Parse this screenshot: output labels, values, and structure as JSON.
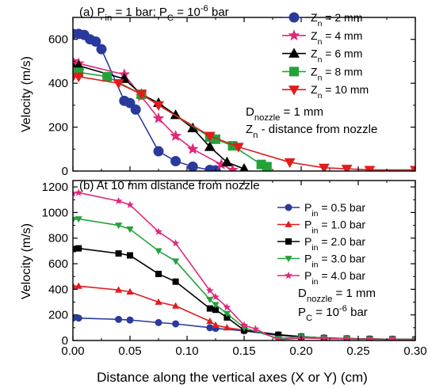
{
  "chart_data": [
    {
      "type": "line",
      "panel": "a",
      "title_parts": [
        "(a) P",
        "in",
        " = 1 bar; P",
        "C",
        " = 10",
        "-6",
        " bar"
      ],
      "xlabel": "Distance along the vertical axes (X or Y) (cm)",
      "ylabel": "Velocity (m/s)",
      "xlim": [
        0,
        0.3
      ],
      "ylim": [
        0,
        700
      ],
      "xticks": [
        0.0,
        0.05,
        0.1,
        0.15,
        0.2,
        0.25,
        0.3
      ],
      "yticks": [
        0,
        200,
        400,
        600
      ],
      "legend_position": "top-right",
      "annotation_lines": [
        [
          "D",
          "nozzle",
          " = 1 mm"
        ],
        [
          "Z",
          "n",
          " - distance from nozzle"
        ]
      ],
      "series": [
        {
          "name_parts": [
            "Z",
            "n",
            " = 2 mm"
          ],
          "color": "#2a3a9c",
          "marker": "circle",
          "x": [
            0,
            0.005,
            0.01,
            0.015,
            0.02,
            0.025,
            0.045,
            0.05,
            0.055,
            0.075,
            0.09,
            0.105,
            0.12,
            0.125
          ],
          "y": [
            625,
            625,
            620,
            600,
            590,
            555,
            320,
            310,
            280,
            90,
            45,
            20,
            5,
            3
          ]
        },
        {
          "name_parts": [
            "Z",
            "n",
            " = 4 mm"
          ],
          "color": "#e0287a",
          "marker": "star",
          "x": [
            0,
            0.005,
            0.045,
            0.06,
            0.075,
            0.09,
            0.105,
            0.13,
            0.14
          ],
          "y": [
            500,
            490,
            440,
            340,
            240,
            160,
            100,
            30,
            5
          ]
        },
        {
          "name_parts": [
            "Z",
            "n",
            " = 6 mm"
          ],
          "color": "#000000",
          "marker": "triangle-up",
          "x": [
            0,
            0.005,
            0.045,
            0.06,
            0.075,
            0.09,
            0.105,
            0.12,
            0.135,
            0.15
          ],
          "y": [
            475,
            480,
            420,
            350,
            310,
            255,
            195,
            110,
            40,
            10
          ]
        },
        {
          "name_parts": [
            "Z",
            "n",
            " = 8 mm"
          ],
          "color": "#22a33a",
          "marker": "square",
          "x": [
            0,
            0.005,
            0.03,
            0.06,
            0.12,
            0.125,
            0.14,
            0.165,
            0.17
          ],
          "y": [
            450,
            450,
            430,
            350,
            155,
            145,
            115,
            30,
            20
          ]
        },
        {
          "name_parts": [
            "Z",
            "n",
            " = 10 mm"
          ],
          "color": "#e01c1c",
          "marker": "triangle-down",
          "x": [
            0,
            0.005,
            0.04,
            0.06,
            0.075,
            0.12,
            0.145,
            0.19,
            0.22,
            0.24,
            0.26,
            0.3
          ],
          "y": [
            430,
            430,
            400,
            350,
            300,
            160,
            110,
            40,
            15,
            10,
            5,
            5
          ]
        }
      ]
    },
    {
      "type": "line",
      "panel": "b",
      "title": "(b) At 10 mm distance from nozzle",
      "xlabel": "Distance along the vertical axes (X or Y) (cm)",
      "ylabel": "Velocity (m/s)",
      "xlim": [
        0,
        0.3
      ],
      "ylim": [
        0,
        1250
      ],
      "xticks": [
        0.0,
        0.05,
        0.1,
        0.15,
        0.2,
        0.25,
        0.3
      ],
      "xtick_labels": [
        "0.00",
        "0.05",
        "0.10",
        "0.15",
        "0.20",
        "0.25",
        "0.30"
      ],
      "yticks": [
        0,
        200,
        400,
        600,
        800,
        1000,
        1200
      ],
      "legend_position": "top-right",
      "annotation_lines": [
        [
          "D",
          "nozzle",
          " = 1 mm"
        ],
        [
          "P",
          "C",
          " = 10",
          "-6",
          " bar"
        ]
      ],
      "series": [
        {
          "name_parts": [
            "P",
            "in",
            " = 0.5 bar"
          ],
          "color": "#2a3a9c",
          "marker": "circle",
          "x": [
            0,
            0.005,
            0.04,
            0.05,
            0.075,
            0.09,
            0.12,
            0.125,
            0.15,
            0.18,
            0.2,
            0.22,
            0.24,
            0.26,
            0.28,
            0.3
          ],
          "y": [
            175,
            175,
            165,
            160,
            140,
            130,
            100,
            95,
            75,
            40,
            30,
            20,
            15,
            12,
            10,
            8
          ]
        },
        {
          "name_parts": [
            "P",
            "in",
            " = 1.0 bar"
          ],
          "color": "#e01c1c",
          "marker": "triangle-up",
          "x": [
            0,
            0.005,
            0.04,
            0.05,
            0.075,
            0.09,
            0.12,
            0.125,
            0.135,
            0.15,
            0.18,
            0.2,
            0.22,
            0.24,
            0.26,
            0.28,
            0.3
          ],
          "y": [
            425,
            425,
            395,
            380,
            300,
            270,
            150,
            120,
            100,
            80,
            45,
            30,
            20,
            15,
            12,
            10,
            8
          ]
        },
        {
          "name_parts": [
            "P",
            "in",
            " = 2.0 bar"
          ],
          "color": "#000000",
          "marker": "square",
          "x": [
            0,
            0.005,
            0.04,
            0.05,
            0.075,
            0.09,
            0.12,
            0.125,
            0.135,
            0.15,
            0.18,
            0.2,
            0.22,
            0.24,
            0.26,
            0.28,
            0.3
          ],
          "y": [
            715,
            720,
            680,
            665,
            520,
            460,
            250,
            240,
            180,
            80,
            45,
            30,
            20,
            15,
            12,
            10,
            8
          ]
        },
        {
          "name_parts": [
            "P",
            "in",
            " = 3.0 bar"
          ],
          "color": "#22a33a",
          "marker": "triangle-down",
          "x": [
            0,
            0.005,
            0.04,
            0.05,
            0.075,
            0.09,
            0.12,
            0.125,
            0.135,
            0.15,
            0.18,
            0.2,
            0.22,
            0.24,
            0.26,
            0.28,
            0.3
          ],
          "y": [
            945,
            950,
            900,
            870,
            700,
            620,
            320,
            280,
            210,
            100,
            15,
            30,
            20,
            15,
            12,
            10,
            8
          ]
        },
        {
          "name_parts": [
            "P",
            "in",
            " = 4.0 bar"
          ],
          "color": "#e0287a",
          "marker": "star",
          "x": [
            0,
            0.005,
            0.04,
            0.05,
            0.075,
            0.09,
            0.12,
            0.125,
            0.135,
            0.15,
            0.16,
            0.18,
            0.2,
            0.22,
            0.24,
            0.26,
            0.28,
            0.3
          ],
          "y": [
            1150,
            1155,
            1090,
            1060,
            850,
            760,
            390,
            340,
            260,
            120,
            90,
            5,
            20,
            15,
            12,
            10,
            8,
            5
          ]
        }
      ]
    }
  ]
}
